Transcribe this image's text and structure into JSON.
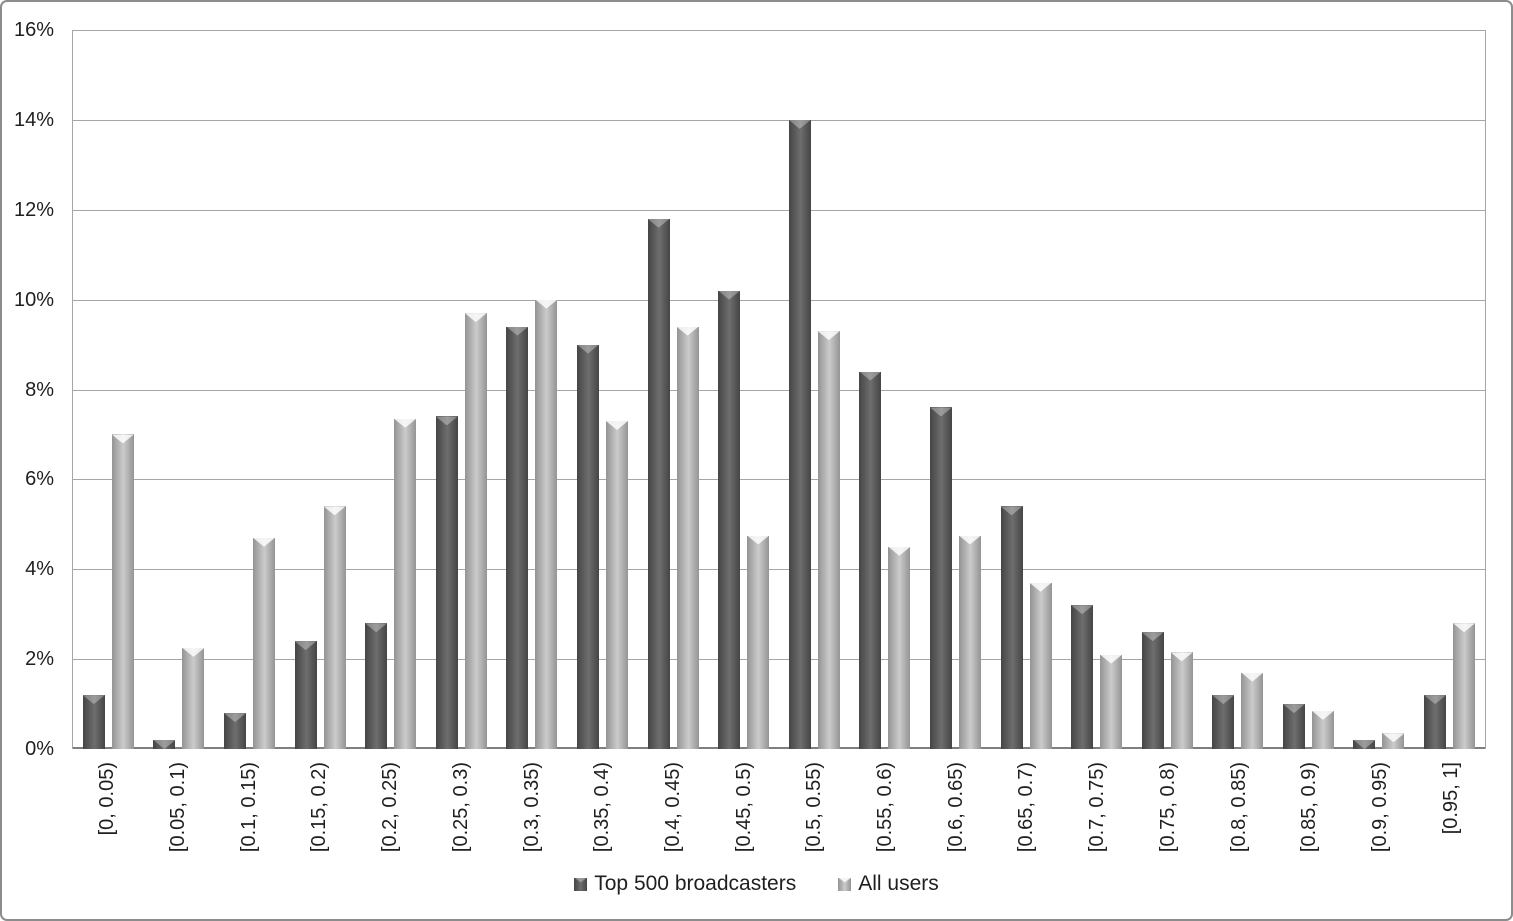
{
  "window": {
    "background": "#ffffff",
    "frame_border_color": "#8c8c8c"
  },
  "chart_data": {
    "type": "bar",
    "title": "",
    "xlabel": "",
    "ylabel": "",
    "categories": [
      "[0, 0.05)",
      "[0.05, 0.1)",
      "[0.1, 0.15)",
      "[0.15, 0.2)",
      "[0.2, 0.25)",
      "[0.25, 0.3)",
      "[0.3, 0.35)",
      "[0.35, 0.4)",
      "[0.4, 0.45)",
      "[0.45, 0.5)",
      "[0.5, 0.55)",
      "[0.55, 0.6)",
      "[0.6, 0.65)",
      "[0.65, 0.7)",
      "[0.7, 0.75)",
      "[0.75, 0.8)",
      "[0.8, 0.85)",
      "[0.85, 0.9)",
      "[0.9, 0.95)",
      "[0.95, 1]"
    ],
    "series": [
      {
        "name": "Top 500 broadcasters",
        "values": [
          1.2,
          0.2,
          0.8,
          2.4,
          2.8,
          7.4,
          9.4,
          9.0,
          11.8,
          10.2,
          14.0,
          8.4,
          7.6,
          5.4,
          3.2,
          2.6,
          1.2,
          1.0,
          0.2,
          1.2
        ],
        "unit": "%",
        "fill_edge": "#454545",
        "fill_center": "#6e6e6e",
        "cap_highlight": "rgba(255,255,255,0.32)"
      },
      {
        "name": "All users",
        "values": [
          7.0,
          2.25,
          4.7,
          5.4,
          7.35,
          9.7,
          10.0,
          7.3,
          9.4,
          4.75,
          9.3,
          4.5,
          4.75,
          3.7,
          2.1,
          2.15,
          1.7,
          0.85,
          0.35,
          2.8
        ],
        "unit": "%",
        "fill_edge": "#949494",
        "fill_center": "#cbcbcb",
        "cap_highlight": "rgba(255,255,255,0.82)"
      }
    ],
    "ylim": [
      0,
      16
    ],
    "ytick_step": 2,
    "yticks": [
      "0%",
      "2%",
      "4%",
      "6%",
      "8%",
      "10%",
      "12%",
      "14%",
      "16%"
    ],
    "grid": true,
    "gridline_color": "#a6a6a6",
    "axis_line_color": "#7f7f7f",
    "text_color": "#1f1f1f",
    "legend_position": "bottom"
  }
}
